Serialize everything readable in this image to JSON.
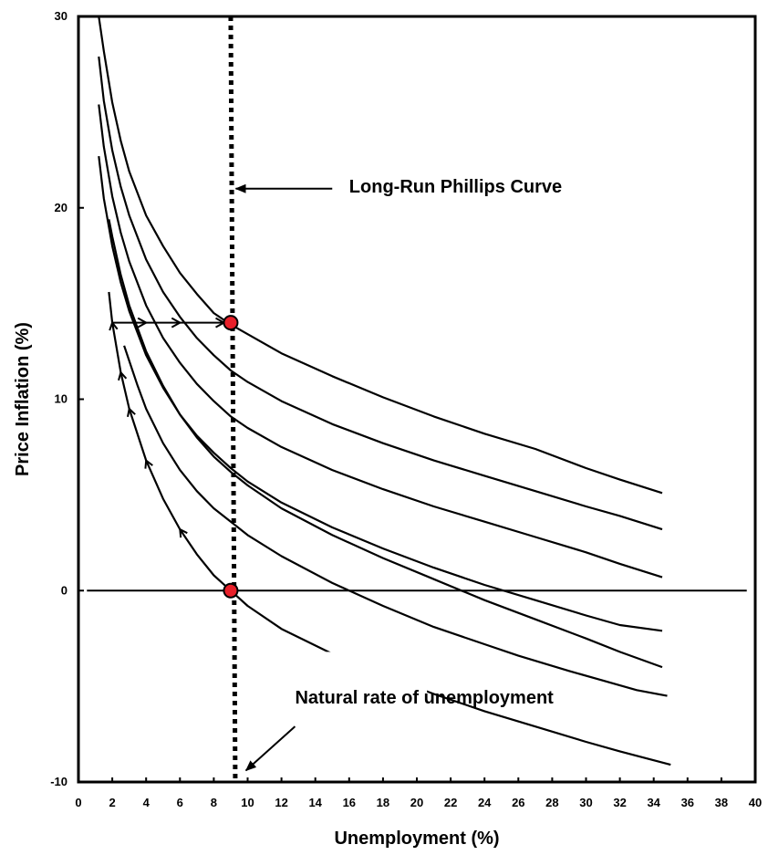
{
  "chart_data": {
    "type": "line",
    "title": "",
    "xlabel": "Unemployment (%)",
    "ylabel": "Price Inflation (%)",
    "xlim": [
      0,
      40
    ],
    "ylim": [
      -10,
      30
    ],
    "xticks": [
      0,
      2,
      4,
      6,
      8,
      10,
      12,
      14,
      16,
      18,
      20,
      22,
      24,
      26,
      28,
      30,
      32,
      34,
      36,
      38,
      40
    ],
    "yticks": [
      -10,
      0,
      10,
      20,
      30
    ],
    "grid": false,
    "legend": "none",
    "series": [
      {
        "x": [
          1.2,
          1.5,
          2,
          2.5,
          3,
          4,
          5,
          6,
          7,
          8,
          9,
          10,
          12,
          15,
          18,
          21,
          24,
          27,
          30,
          32,
          34.5
        ],
        "y": [
          30,
          28.2,
          25.5,
          23.5,
          21.9,
          19.6,
          18.0,
          16.6,
          15.5,
          14.5,
          13.9,
          13.4,
          12.4,
          11.2,
          10.1,
          9.1,
          8.2,
          7.4,
          6.4,
          5.8,
          5.1
        ]
      },
      {
        "x": [
          1.2,
          1.5,
          2,
          2.5,
          3,
          4,
          5,
          6,
          7,
          8,
          9,
          10,
          12,
          15,
          18,
          21,
          24,
          27,
          30,
          32,
          34.5
        ],
        "y": [
          27.9,
          25.6,
          23.0,
          21.1,
          19.6,
          17.3,
          15.6,
          14.3,
          13.2,
          12.3,
          11.5,
          10.9,
          9.9,
          8.7,
          7.7,
          6.8,
          6.0,
          5.2,
          4.4,
          3.9,
          3.2
        ]
      },
      {
        "x": [
          1.2,
          1.5,
          2,
          2.5,
          3,
          4,
          5,
          6,
          7,
          8,
          9,
          10,
          12,
          15,
          18,
          21,
          24,
          27,
          30,
          32,
          34.5
        ],
        "y": [
          25.4,
          23.2,
          20.6,
          18.7,
          17.2,
          14.9,
          13.2,
          11.9,
          10.8,
          9.9,
          9.1,
          8.5,
          7.5,
          6.3,
          5.3,
          4.4,
          3.6,
          2.8,
          2.0,
          1.4,
          0.7
        ]
      },
      {
        "x": [
          1.2,
          1.5,
          2,
          2.5,
          3,
          4,
          5,
          6,
          7,
          8,
          9,
          10,
          12,
          15,
          18,
          21,
          24,
          27,
          30,
          32,
          34.5
        ],
        "y": [
          22.7,
          20.5,
          18.0,
          16.1,
          14.6,
          12.3,
          10.6,
          9.2,
          8.1,
          7.2,
          6.4,
          5.7,
          4.6,
          3.3,
          2.2,
          1.2,
          0.3,
          -0.5,
          -1.3,
          -1.8,
          -2.1
        ]
      },
      {
        "x": [
          1.8,
          2,
          2.5,
          3,
          4,
          5,
          6,
          7,
          8,
          9,
          10,
          12,
          15,
          18,
          21,
          24,
          27,
          30,
          32,
          34.5
        ],
        "y": [
          19.4,
          18.5,
          16.5,
          14.9,
          12.5,
          10.7,
          9.2,
          8.0,
          7.0,
          6.2,
          5.5,
          4.3,
          2.9,
          1.7,
          0.6,
          -0.5,
          -1.5,
          -2.5,
          -3.2,
          -4.0
        ]
      },
      {
        "x": [
          2.7,
          3,
          3.5,
          4,
          5,
          6,
          7,
          8,
          9,
          10,
          12,
          15,
          18,
          21,
          24,
          26,
          29,
          31,
          33,
          34.8
        ],
        "y": [
          12.8,
          12.0,
          10.7,
          9.5,
          7.7,
          6.3,
          5.2,
          4.3,
          3.6,
          2.9,
          1.8,
          0.4,
          -0.8,
          -1.9,
          -2.8,
          -3.4,
          -4.2,
          -4.7,
          -5.2,
          -5.5
        ]
      },
      {
        "x": [
          1.8,
          2,
          2.5,
          3,
          4,
          5,
          6,
          7,
          8,
          9,
          10,
          12,
          15,
          18,
          21,
          24,
          27,
          30,
          32,
          35
        ],
        "y": [
          15.6,
          14.0,
          11.4,
          9.5,
          6.8,
          4.8,
          3.2,
          1.9,
          0.8,
          0.0,
          -0.8,
          -2.0,
          -3.3,
          -4.4,
          -5.4,
          -6.3,
          -7.1,
          -7.9,
          -8.4,
          -9.1
        ]
      }
    ],
    "horizontal_line": {
      "y": 0,
      "x_from": 0.5,
      "x_to": 39.5
    },
    "vertical_line": {
      "x": 9,
      "label": "Long-Run Phillips Curve",
      "style": "dotted"
    },
    "points": [
      {
        "x": 9,
        "y": 14
      },
      {
        "x": 9,
        "y": 0
      }
    ],
    "horizontal_arrow_path": {
      "y": 14,
      "x_from": 2,
      "x_to": 9,
      "arrows_at": [
        4,
        6,
        8.6
      ]
    },
    "arrows_on_lowest_curve": [
      2,
      2.5,
      3,
      4,
      6
    ],
    "annotations": [
      {
        "text": "Long-Run Phillips Curve",
        "x": 16,
        "y": 20.8,
        "arrow_from": [
          15,
          21
        ],
        "arrow_to": [
          9.3,
          21
        ]
      },
      {
        "text": "Natural rate of unemployment",
        "x": 12.8,
        "y": -5.9,
        "arrow_from": [
          12.8,
          -7.1
        ],
        "arrow_to": [
          9.9,
          -9.4
        ]
      }
    ]
  }
}
